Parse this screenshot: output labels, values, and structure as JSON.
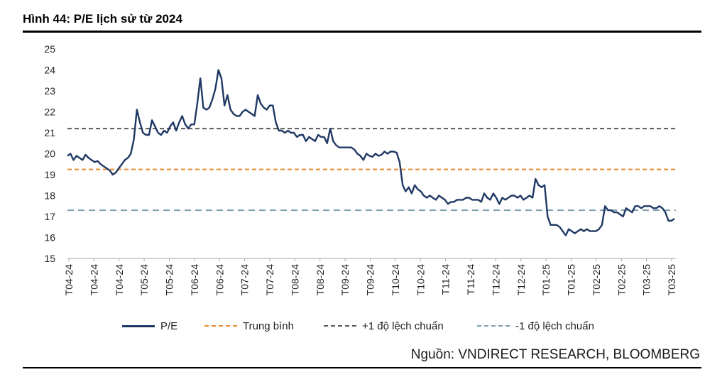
{
  "figure": {
    "title": "Hình 44: P/E lịch sử từ 2024",
    "source": "Nguồn: VNDIRECT RESEARCH, BLOOMBERG"
  },
  "chart_data": {
    "type": "line",
    "title": "Hình 44: P/E lịch sử từ 2024",
    "xlabel": "",
    "ylabel": "",
    "ylim": [
      15,
      25
    ],
    "yticks": [
      15,
      16,
      17,
      18,
      19,
      20,
      21,
      22,
      23,
      24,
      25
    ],
    "xtick_labels": [
      "T04-24",
      "T04-24",
      "T04-24",
      "T05-24",
      "T05-24",
      "T06-24",
      "T06-24",
      "T07-24",
      "T07-24",
      "T08-24",
      "T08-24",
      "T09-24",
      "T09-24",
      "T10-24",
      "T10-24",
      "T11-24",
      "T11-24",
      "T12-24",
      "T12-24",
      "T01-25",
      "T01-25",
      "T02-25",
      "T02-25",
      "T03-25",
      "T03-25"
    ],
    "grid": false,
    "legend_placement": "bottom",
    "series": [
      {
        "name": "P/E",
        "color": "#1f3864",
        "values": [
          19.9,
          20.0,
          19.7,
          19.9,
          19.8,
          19.7,
          19.95,
          19.8,
          19.7,
          19.6,
          19.65,
          19.5,
          19.4,
          19.3,
          19.2,
          19.0,
          19.1,
          19.3,
          19.5,
          19.7,
          19.8,
          20.0,
          20.7,
          22.1,
          21.5,
          21.0,
          20.9,
          20.9,
          21.6,
          21.3,
          21.0,
          20.9,
          21.1,
          21.0,
          21.3,
          21.5,
          21.1,
          21.5,
          21.8,
          21.4,
          21.2,
          21.4,
          21.4,
          22.4,
          23.6,
          22.2,
          22.1,
          22.2,
          22.6,
          23.1,
          24.0,
          23.6,
          22.3,
          22.8,
          22.1,
          21.9,
          21.8,
          21.8,
          22.0,
          22.1,
          22.0,
          21.9,
          21.8,
          22.8,
          22.4,
          22.2,
          22.1,
          22.3,
          22.3,
          21.5,
          21.1,
          21.1,
          21.0,
          21.1,
          21.0,
          21.0,
          20.8,
          20.9,
          20.9,
          20.6,
          20.8,
          20.7,
          20.6,
          20.9,
          20.8,
          20.8,
          20.5,
          21.2,
          20.6,
          20.4,
          20.3,
          20.3,
          20.3,
          20.3,
          20.3,
          20.2,
          20.0,
          19.9,
          19.7,
          20.0,
          19.9,
          19.85,
          20.0,
          19.9,
          19.95,
          20.1,
          20.0,
          20.1,
          20.1,
          20.05,
          19.6,
          18.5,
          18.2,
          18.4,
          18.1,
          18.5,
          18.3,
          18.2,
          18.0,
          17.9,
          18.0,
          17.9,
          17.8,
          18.0,
          17.9,
          17.8,
          17.6,
          17.7,
          17.7,
          17.8,
          17.8,
          17.8,
          17.9,
          17.9,
          17.8,
          17.8,
          17.8,
          17.7,
          18.1,
          17.9,
          17.8,
          18.1,
          17.9,
          17.6,
          17.9,
          17.8,
          17.9,
          18.0,
          18.0,
          17.9,
          18.0,
          17.8,
          17.9,
          18.0,
          17.9,
          18.8,
          18.5,
          18.4,
          18.5,
          17.0,
          16.6,
          16.6,
          16.6,
          16.5,
          16.3,
          16.1,
          16.4,
          16.3,
          16.2,
          16.3,
          16.4,
          16.3,
          16.4,
          16.3,
          16.3,
          16.3,
          16.4,
          16.6,
          17.5,
          17.3,
          17.3,
          17.2,
          17.2,
          17.1,
          17.0,
          17.4,
          17.3,
          17.2,
          17.5,
          17.5,
          17.4,
          17.5,
          17.5,
          17.5,
          17.4,
          17.4,
          17.5,
          17.4,
          17.2,
          16.8,
          16.8,
          16.9
        ]
      },
      {
        "name": "Trung bình",
        "color": "#e8892b",
        "dash": "6,4",
        "constant": 19.25
      },
      {
        "name": "+1 độ lệch chuẩn",
        "color": "#595959",
        "dash": "6,4",
        "constant": 21.2
      },
      {
        "name": "-1 độ lệch chuẩn",
        "color": "#7f9fb0",
        "dash": "9,6",
        "constant": 17.3
      }
    ]
  }
}
